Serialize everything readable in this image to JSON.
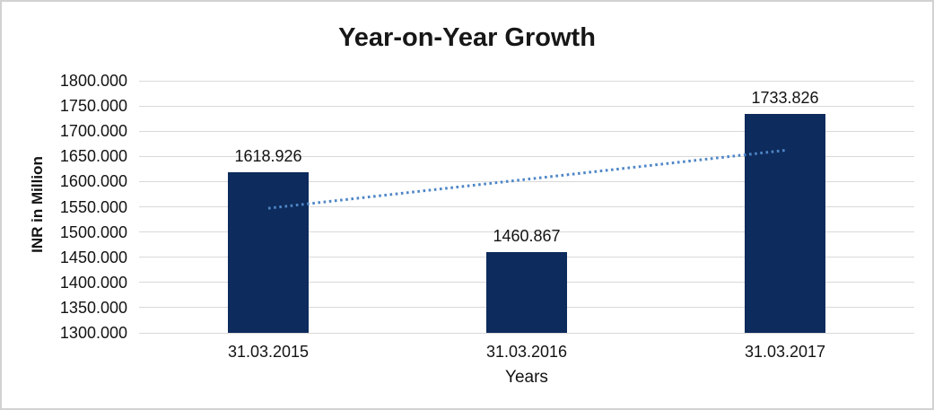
{
  "chart_data": {
    "type": "bar",
    "title": "Year-on-Year Growth",
    "categories": [
      "31.03.2015",
      "31.03.2016",
      "31.03.2017"
    ],
    "values": [
      1618.926,
      1460.867,
      1733.826
    ],
    "data_labels": [
      "1618.926",
      "1460.867",
      "1733.826"
    ],
    "xlabel": "Years",
    "ylabel": "INR in Million",
    "ylim": [
      1300,
      1800
    ],
    "y_tick_step": 50,
    "y_tick_labels": [
      "1800.000",
      "1750.000",
      "1700.000",
      "1650.000",
      "1600.000",
      "1550.000",
      "1500.000",
      "1450.000",
      "1400.000",
      "1350.000",
      "1300.000"
    ],
    "grid": "horizontal",
    "legend": "none",
    "bar_color": "#0d2b5c",
    "gridline_color": "#d9d9d9",
    "trendline": {
      "type": "linear",
      "style": "dotted",
      "color": "#4e86c6",
      "start_value": 1547.1,
      "end_value": 1662.0
    }
  }
}
